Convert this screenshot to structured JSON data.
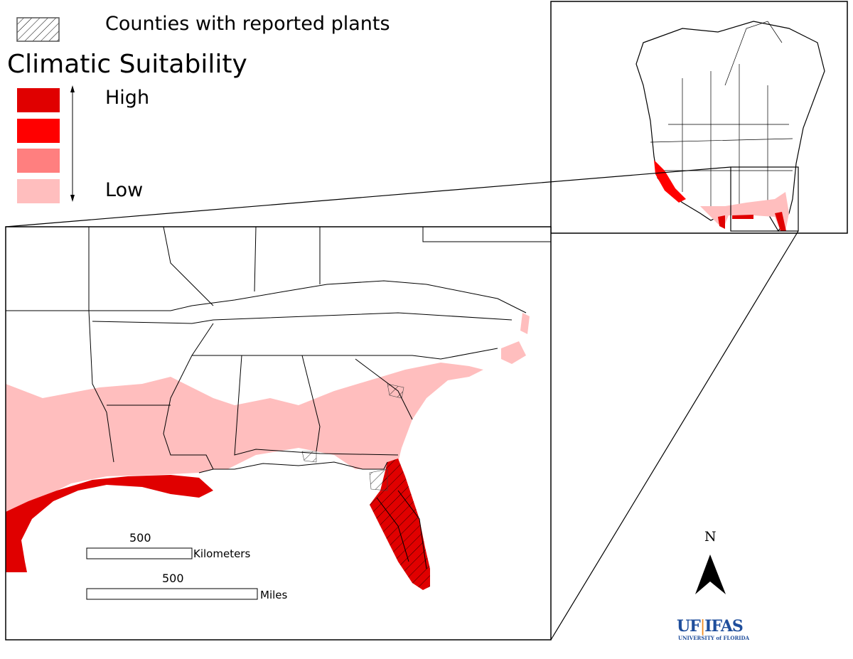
{
  "legend": {
    "hatch_label": "Counties with reported plants",
    "title": "Climatic Suitability",
    "high_label": "High",
    "low_label": "Low",
    "classes": [
      {
        "level": "high",
        "color": "#e00000"
      },
      {
        "level": "medium-high",
        "color": "#ff0000"
      },
      {
        "level": "medium-low",
        "color": "#ff7f7f"
      },
      {
        "level": "low",
        "color": "#ffbebe"
      }
    ]
  },
  "scale_bars": [
    {
      "value": "500",
      "unit": "Kilometers"
    },
    {
      "value": "500",
      "unit": "Miles"
    }
  ],
  "north_arrow": {
    "label": "N"
  },
  "logo": {
    "name": "UF",
    "sep": "|",
    "name2": "IFAS",
    "subtitle": "UNIVERSITY of FLORIDA"
  }
}
